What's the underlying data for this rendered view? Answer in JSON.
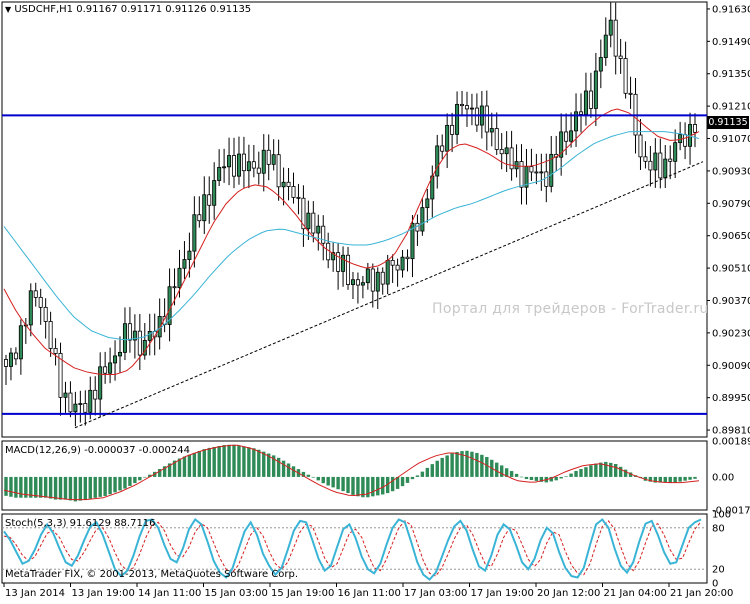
{
  "header": {
    "symbol_timeframe": "USDCHF,H1",
    "ohlc": "0.91167 0.91171 0.91126 0.91135",
    "last_price": "0.91135"
  },
  "watermark": "Портал для трейдеров - ForTrader.ru",
  "copyright": "MetaTrader FIX, © 2001-2013, MetaQuotes Software Corp.",
  "colors": {
    "bull_candle": "#2e8b57",
    "bear_candle": "#ffffff",
    "ma_fast": "#d62020",
    "ma_slow": "#3ab4d6",
    "horizontal_line": "#0000cc",
    "macd_histogram": "#2e8b57",
    "macd_signal": "#d62020",
    "stoch_main": "#3ab4d6",
    "stoch_signal": "#d62020"
  },
  "macd": {
    "label": "MACD(12,26,9) -0.000037 -0.000244",
    "ticks": [
      "0.001897",
      "0.00",
      "-0.001747"
    ]
  },
  "stoch": {
    "label": "Stoch(5,3,3) 91.6129 88.7116",
    "ticks": [
      "100",
      "80",
      "20",
      "0"
    ]
  },
  "chart_data": [
    {
      "type": "candlestick",
      "symbol": "USDCHF",
      "timeframe": "H1",
      "y_ticks": [
        "0.91630",
        "0.91490",
        "0.91350",
        "0.91210",
        "0.91070",
        "0.90930",
        "0.90790",
        "0.90650",
        "0.90510",
        "0.90370",
        "0.90230",
        "0.90090",
        "0.89950",
        "0.89810"
      ],
      "ylim": [
        0.8978,
        0.9166
      ],
      "x_labels": [
        "13 Jan 2014",
        "13 Jan 19:00",
        "14 Jan 11:00",
        "15 Jan 03:00",
        "15 Jan 19:00",
        "16 Jan 11:00",
        "17 Jan 03:00",
        "17 Jan 19:00",
        "20 Jan 12:00",
        "21 Jan 04:00",
        "21 Jan 20:00"
      ],
      "close_path": [
        0.9006,
        0.9018,
        0.9031,
        0.9042,
        0.9024,
        0.9002,
        0.8993,
        0.8988,
        0.8996,
        0.9002,
        0.9011,
        0.9018,
        0.9024,
        0.9017,
        0.9021,
        0.9031,
        0.9041,
        0.9055,
        0.9068,
        0.9079,
        0.9089,
        0.9096,
        0.9098,
        0.9093,
        0.9096,
        0.9099,
        0.9092,
        0.9086,
        0.9077,
        0.9072,
        0.9064,
        0.9058,
        0.9051,
        0.9047,
        0.9044,
        0.9046,
        0.9048,
        0.9051,
        0.9055,
        0.9064,
        0.9078,
        0.9094,
        0.9108,
        0.9117,
        0.9121,
        0.9119,
        0.9112,
        0.9106,
        0.9098,
        0.9093,
        0.9092,
        0.9091,
        0.9093,
        0.9104,
        0.9112,
        0.9118,
        0.9126,
        0.9143,
        0.9157,
        0.9136,
        0.9117,
        0.9097,
        0.9094,
        0.9096,
        0.9102,
        0.9108,
        0.9114
      ],
      "fast_ma_path": [
        0.9042,
        0.9031,
        0.9023,
        0.9016,
        0.9012,
        0.9008,
        0.9006,
        0.9005,
        0.9005,
        0.9007,
        0.9014,
        0.9023,
        0.9034,
        0.9046,
        0.9058,
        0.907,
        0.9079,
        0.9085,
        0.9087,
        0.9086,
        0.9081,
        0.9074,
        0.9066,
        0.906,
        0.9056,
        0.9053,
        0.9051,
        0.9052,
        0.9056,
        0.9066,
        0.908,
        0.9093,
        0.9102,
        0.9105,
        0.9103,
        0.91,
        0.9096,
        0.9095,
        0.9095,
        0.9097,
        0.91,
        0.9106,
        0.9112,
        0.9117,
        0.912,
        0.9118,
        0.9113,
        0.9108,
        0.9106,
        0.9107,
        0.911
      ],
      "slow_ma_path": [
        0.9069,
        0.9059,
        0.9049,
        0.9039,
        0.903,
        0.9024,
        0.9021,
        0.902,
        0.9021,
        0.9025,
        0.9032,
        0.904,
        0.9049,
        0.9057,
        0.9063,
        0.9067,
        0.9068,
        0.9066,
        0.9064,
        0.9062,
        0.9061,
        0.9061,
        0.9063,
        0.9066,
        0.907,
        0.9074,
        0.9077,
        0.9079,
        0.9082,
        0.9085,
        0.9087,
        0.9089,
        0.9094,
        0.91,
        0.9105,
        0.9108,
        0.911,
        0.911,
        0.911,
        0.9109,
        0.9107
      ],
      "horizontal_levels": [
        0.9117,
        0.8988
      ],
      "trendline": {
        "from": 0.8982,
        "to": 0.9097
      },
      "ma_fast_label": "",
      "ma_slow_label": ""
    },
    {
      "type": "bar",
      "name": "MACD(12,26,9)",
      "values_main": -3.7e-05,
      "values_signal": -0.000244,
      "ylim": [
        -0.00175,
        0.0019
      ],
      "histogram": [
        -0.001,
        -0.0011,
        -0.0011,
        -0.0011,
        -0.0011,
        -0.0012,
        -0.0012,
        -0.0013,
        -0.0012,
        -0.0011,
        -0.001,
        -0.0008,
        -0.0006,
        -0.0003,
        0.0,
        0.0003,
        0.0006,
        0.0009,
        0.0011,
        0.0013,
        0.0015,
        0.0016,
        0.0017,
        0.0017,
        0.0016,
        0.0015,
        0.0013,
        0.0011,
        0.0008,
        0.0005,
        0.0002,
        -0.0001,
        -0.0004,
        -0.0006,
        -0.0008,
        -0.001,
        -0.0011,
        -0.001,
        -0.0009,
        -0.0007,
        -0.0004,
        0.0,
        0.0004,
        0.0008,
        0.0011,
        0.0013,
        0.0014,
        0.0013,
        0.0011,
        0.0008,
        0.0005,
        0.0002,
        -0.0001,
        -0.0002,
        -0.0003,
        -0.0002,
        0.0,
        0.0003,
        0.0005,
        0.0007,
        0.0008,
        0.0007,
        0.0004,
        0.0001,
        -0.0002,
        -0.0003,
        -0.0003,
        -0.0003,
        -0.0002,
        -0.0001
      ],
      "signal": [
        -0.0007,
        -0.0009,
        -0.001,
        -0.0011,
        -0.0012,
        -0.0012,
        -0.0011,
        -0.0008,
        -0.0004,
        0.0001,
        0.0006,
        0.0011,
        0.0014,
        0.0016,
        0.0017,
        0.0015,
        0.0011,
        0.0006,
        0.0001,
        -0.0004,
        -0.0008,
        -0.001,
        -0.0009,
        -0.0005,
        0.0001,
        0.0007,
        0.0011,
        0.0013,
        0.0011,
        0.0007,
        0.0002,
        -0.0002,
        -0.0003,
        -0.0001,
        0.0003,
        0.0006,
        0.0007,
        0.0005,
        0.0001,
        -0.0002,
        -0.0003,
        -0.0003,
        -0.0002
      ]
    },
    {
      "type": "line",
      "name": "Stoch(5,3,3)",
      "main_value": 91.6129,
      "signal_value": 88.7116,
      "ylim": [
        0,
        100
      ],
      "levels": [
        80,
        20
      ],
      "main": [
        75,
        62,
        45,
        28,
        32,
        48,
        70,
        85,
        72,
        50,
        30,
        25,
        40,
        62,
        82,
        88,
        70,
        45,
        20,
        10,
        18,
        40,
        68,
        90,
        92,
        80,
        55,
        35,
        30,
        50,
        78,
        92,
        85,
        60,
        32,
        15,
        8,
        20,
        48,
        75,
        88,
        70,
        42,
        25,
        12,
        22,
        48,
        76,
        90,
        88,
        62,
        35,
        18,
        25,
        52,
        78,
        85,
        65,
        38,
        20,
        14,
        28,
        55,
        80,
        92,
        88,
        60,
        30,
        12,
        5,
        15,
        38,
        62,
        82,
        90,
        76,
        48,
        24,
        18,
        40,
        70,
        85,
        78,
        55,
        30,
        20,
        35,
        62,
        80,
        72,
        45,
        22,
        10,
        8,
        22,
        55,
        85,
        92,
        80,
        50,
        25,
        15,
        30,
        60,
        86,
        90,
        70,
        45,
        28,
        30,
        55,
        80,
        88,
        92
      ],
      "signal": [
        68,
        66,
        55,
        40,
        32,
        38,
        55,
        72,
        76,
        66,
        48,
        34,
        32,
        45,
        62,
        78,
        80,
        65,
        44,
        26,
        18,
        22,
        42,
        66,
        84,
        88,
        76,
        55,
        40,
        38,
        52,
        74,
        86,
        80,
        58,
        36,
        20,
        15,
        26,
        48,
        70,
        80,
        68,
        46,
        28,
        20,
        30,
        52,
        74,
        86,
        82,
        60,
        36,
        22,
        28,
        50,
        72,
        78,
        66,
        42,
        22,
        18,
        34,
        58,
        80,
        90,
        84,
        58,
        32,
        14,
        10,
        22,
        42,
        64,
        80,
        84,
        70,
        48,
        28,
        24,
        42,
        66,
        80,
        76,
        56,
        34,
        24,
        34,
        58,
        74,
        70,
        46,
        26,
        14,
        12,
        28,
        56,
        82,
        90,
        78,
        52,
        28,
        18,
        32,
        58,
        82,
        86,
        70,
        48,
        34,
        36,
        58,
        78,
        89
      ]
    }
  ]
}
